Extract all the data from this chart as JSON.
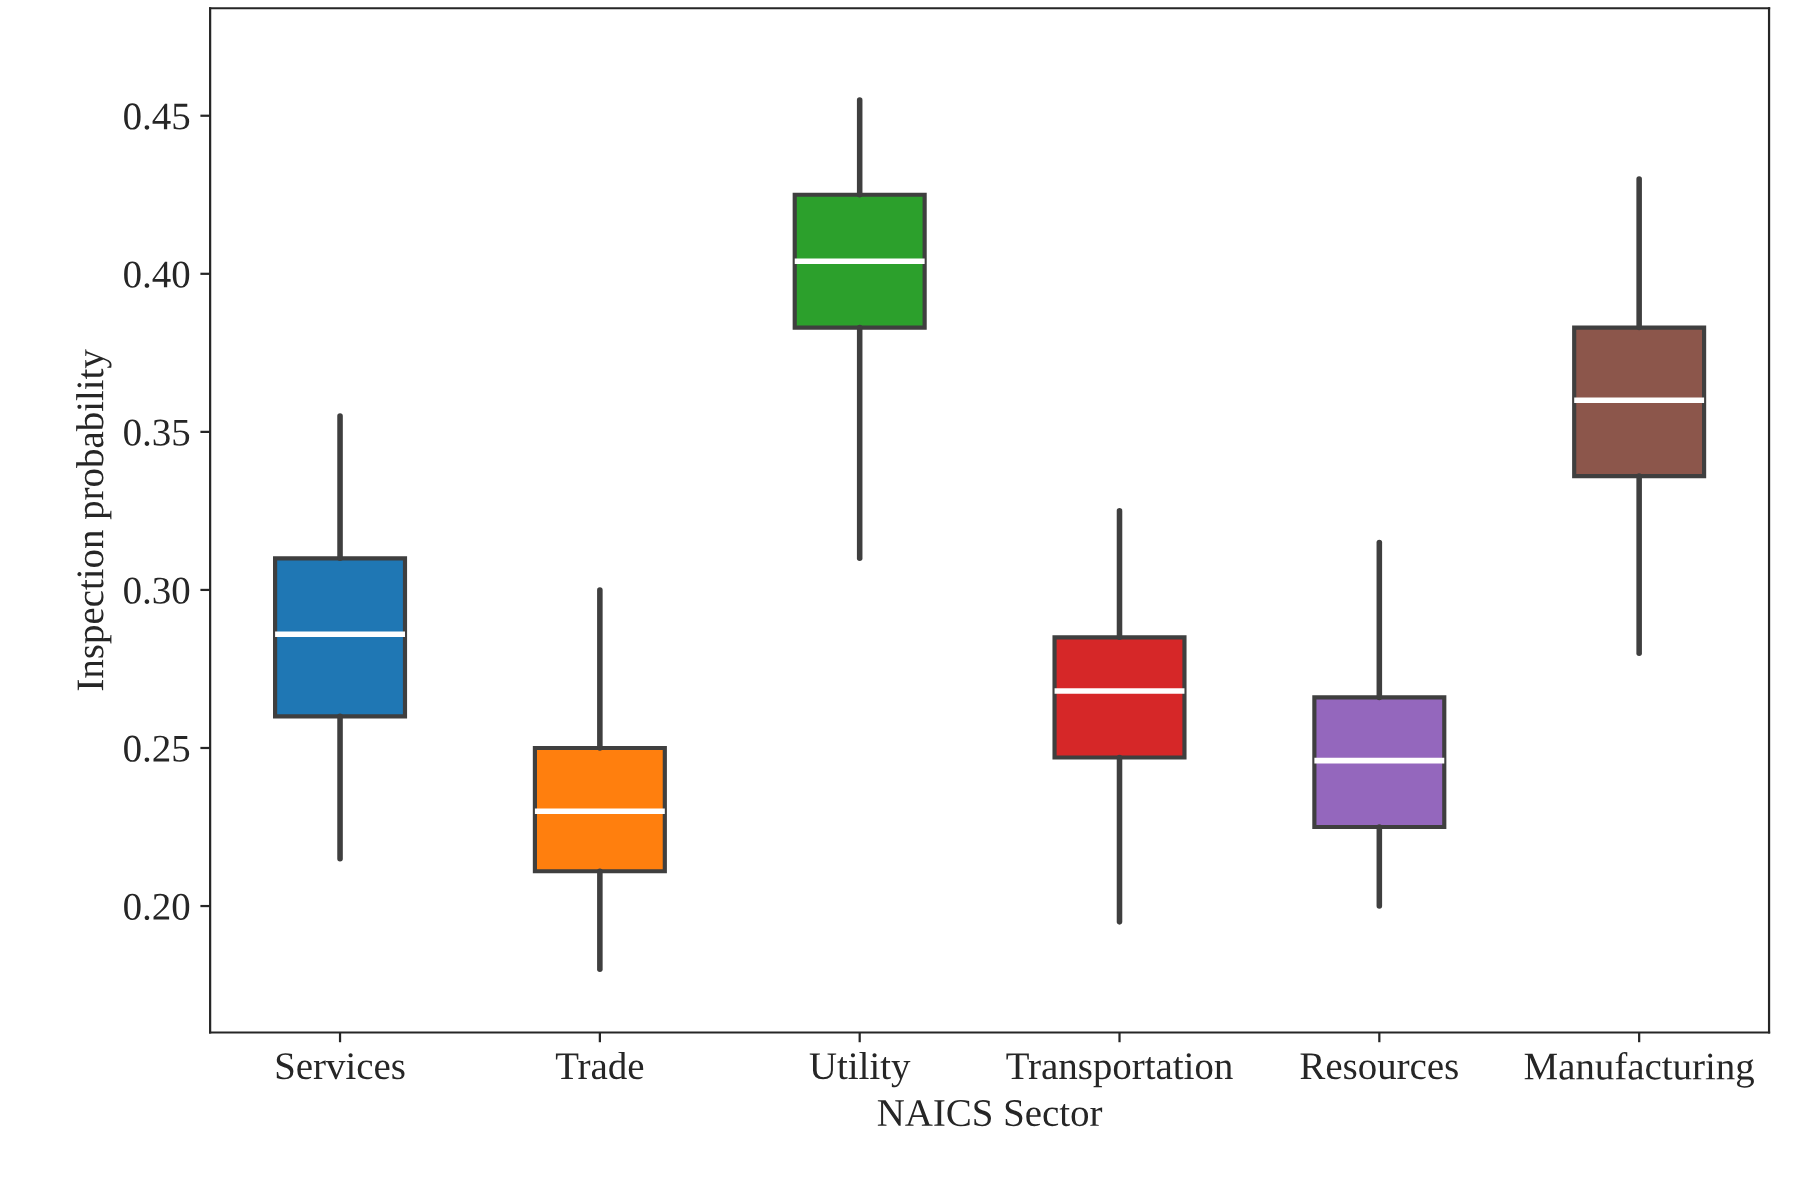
{
  "chart_data": {
    "type": "box",
    "xlabel": "NAICS Sector",
    "ylabel": "Inspection probability",
    "categories": [
      "Services",
      "Trade",
      "Utility",
      "Transportation",
      "Resources",
      "Manufacturing"
    ],
    "colors": [
      "#1f77b4",
      "#ff7f0e",
      "#2ca02c",
      "#d62728",
      "#9467bd",
      "#8c564b"
    ],
    "boxes": [
      {
        "low": 0.215,
        "q1": 0.26,
        "median": 0.286,
        "q3": 0.31,
        "high": 0.355
      },
      {
        "low": 0.18,
        "q1": 0.211,
        "median": 0.23,
        "q3": 0.25,
        "high": 0.3
      },
      {
        "low": 0.31,
        "q1": 0.383,
        "median": 0.404,
        "q3": 0.425,
        "high": 0.455
      },
      {
        "low": 0.195,
        "q1": 0.247,
        "median": 0.268,
        "q3": 0.285,
        "high": 0.325
      },
      {
        "low": 0.2,
        "q1": 0.225,
        "median": 0.246,
        "q3": 0.266,
        "high": 0.315
      },
      {
        "low": 0.28,
        "q1": 0.336,
        "median": 0.36,
        "q3": 0.383,
        "high": 0.43
      }
    ],
    "ylim": [
      0.16,
      0.484
    ],
    "yticks": [
      {
        "value": 0.2,
        "label": "0.20"
      },
      {
        "value": 0.25,
        "label": "0.25"
      },
      {
        "value": 0.3,
        "label": "0.30"
      },
      {
        "value": 0.35,
        "label": "0.35"
      },
      {
        "value": 0.4,
        "label": "0.40"
      },
      {
        "value": 0.45,
        "label": "0.45"
      }
    ]
  }
}
